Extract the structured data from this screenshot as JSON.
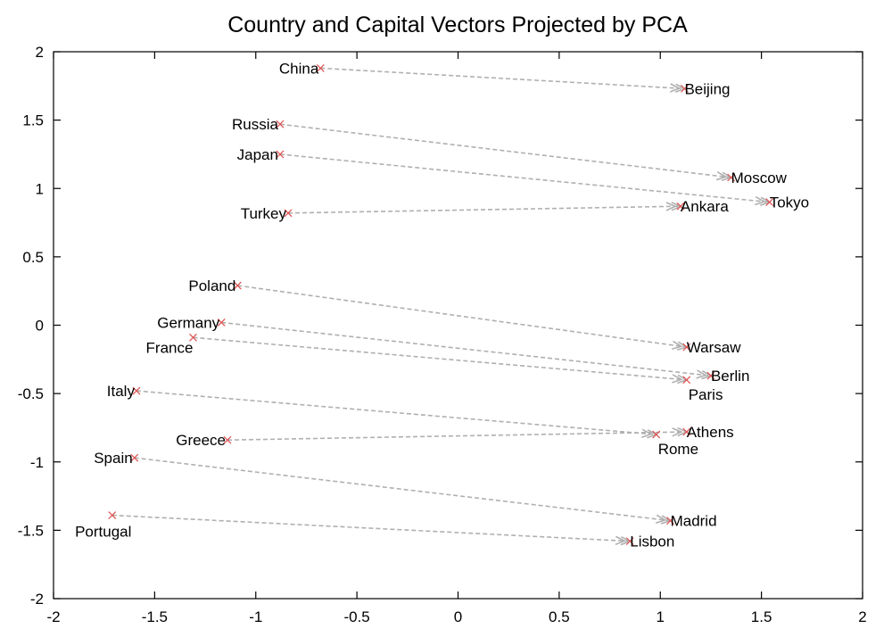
{
  "chart_data": {
    "type": "scatter",
    "title": "Country and Capital Vectors Projected by PCA",
    "xlabel": "",
    "ylabel": "",
    "xlim": [
      -2,
      2
    ],
    "ylim": [
      -2,
      2
    ],
    "xticks": [
      "-2",
      "-1.5",
      "-1",
      "-0.5",
      "0",
      "0.5",
      "1",
      "1.5",
      "2"
    ],
    "yticks": [
      "-2",
      "-1.5",
      "-1",
      "-0.5",
      "0",
      "0.5",
      "1",
      "1.5",
      "2"
    ],
    "grid": false,
    "colors": {
      "marker": "#e05050",
      "arrow": "#b0b0b0"
    },
    "pairs": [
      {
        "country": "China",
        "cx": -0.68,
        "cy": 1.88,
        "capital": "Beijing",
        "kx": 1.12,
        "ky": 1.73
      },
      {
        "country": "Russia",
        "cx": -0.88,
        "cy": 1.47,
        "capital": "Moscow",
        "kx": 1.35,
        "ky": 1.08
      },
      {
        "country": "Japan",
        "cx": -0.88,
        "cy": 1.25,
        "capital": "Tokyo",
        "kx": 1.54,
        "ky": 0.9
      },
      {
        "country": "Turkey",
        "cx": -0.84,
        "cy": 0.82,
        "capital": "Ankara",
        "kx": 1.1,
        "ky": 0.87
      },
      {
        "country": "Poland",
        "cx": -1.09,
        "cy": 0.29,
        "capital": "Warsaw",
        "kx": 1.13,
        "ky": -0.16
      },
      {
        "country": "Germany",
        "cx": -1.17,
        "cy": 0.02,
        "capital": "Berlin",
        "kx": 1.25,
        "ky": -0.37
      },
      {
        "country": "France",
        "cx": -1.31,
        "cy": -0.09,
        "capital": "Paris",
        "kx": 1.13,
        "ky": -0.4
      },
      {
        "country": "Italy",
        "cx": -1.59,
        "cy": -0.48,
        "capital": "Rome",
        "kx": 0.98,
        "ky": -0.8
      },
      {
        "country": "Greece",
        "cx": -1.14,
        "cy": -0.84,
        "capital": "Athens",
        "kx": 1.13,
        "ky": -0.78
      },
      {
        "country": "Spain",
        "cx": -1.6,
        "cy": -0.97,
        "capital": "Madrid",
        "kx": 1.05,
        "ky": -1.43
      },
      {
        "country": "Portugal",
        "cx": -1.71,
        "cy": -1.39,
        "capital": "Lisbon",
        "kx": 0.85,
        "ky": -1.58
      }
    ]
  }
}
